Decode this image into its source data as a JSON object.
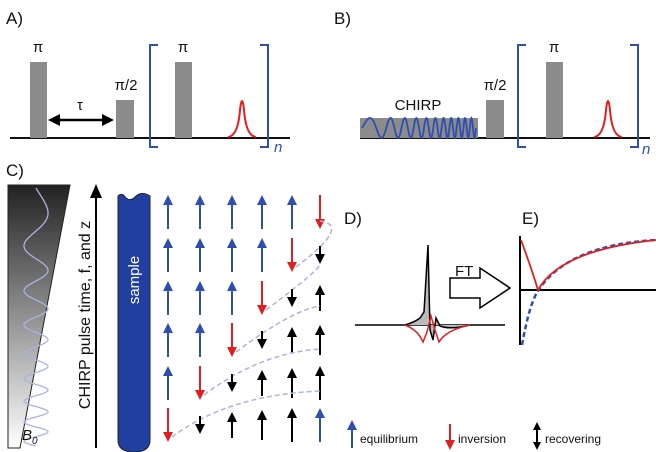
{
  "panel_a": {
    "label": "A)",
    "pi_1": "π",
    "tau": "τ",
    "pi_half": "π/2",
    "pi_2": "π",
    "repeat": "n"
  },
  "panel_b": {
    "label": "B)",
    "chirp": "CHIRP",
    "pi_half": "π/2",
    "pi": "π",
    "repeat": "n"
  },
  "panel_c": {
    "label": "C)",
    "field": "B",
    "field_sub": "0",
    "axis_label": "CHIRP pulse time, f, and z",
    "sample": "sample"
  },
  "panel_d": {
    "label": "D)",
    "transform": "FT"
  },
  "panel_e": {
    "label": "E)"
  },
  "legend": {
    "equilibrium": "equilibrium",
    "inversion": "inversion",
    "recovering": "recovering"
  }
}
